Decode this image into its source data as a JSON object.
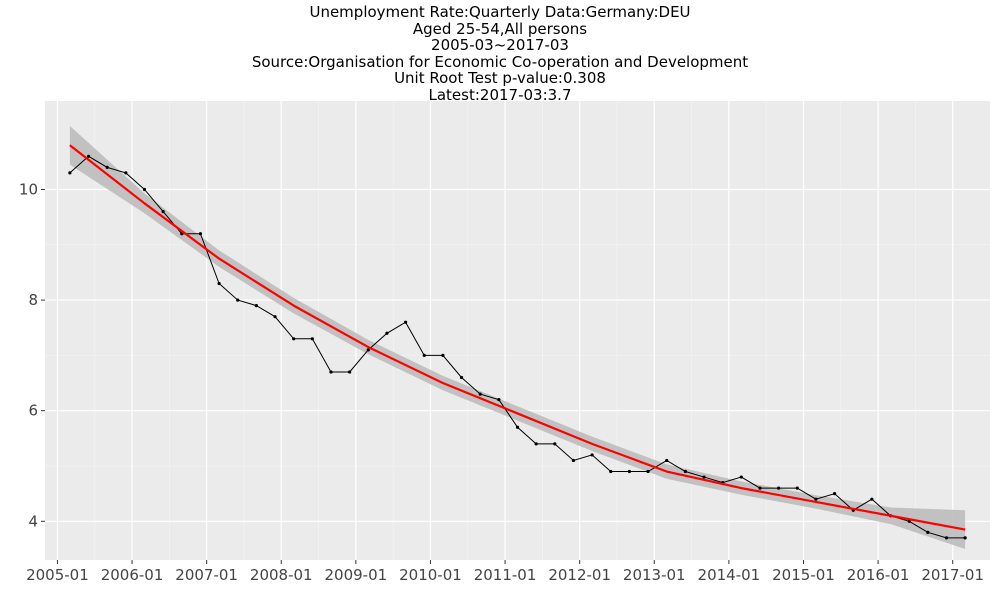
{
  "chart_data": {
    "type": "line",
    "title_lines": [
      "Unemployment Rate:Quarterly Data:Germany:DEU",
      "Aged 25-54,All persons",
      "2005-03~2017-03",
      "Source:Organisation for Economic Co-operation and Development",
      "Unit Root Test p-value:0.308",
      "Latest:2017-03:3.7"
    ],
    "xlabel": "",
    "ylabel": "",
    "x_ticks": [
      "2005-01",
      "2006-01",
      "2007-01",
      "2008-01",
      "2009-01",
      "2010-01",
      "2011-01",
      "2012-01",
      "2013-01",
      "2014-01",
      "2015-01",
      "2016-01",
      "2017-01"
    ],
    "y_ticks": [
      4,
      6,
      8,
      10
    ],
    "xlim": [
      "2004-11",
      "2017-07"
    ],
    "ylim": [
      3.3,
      11.6
    ],
    "grid": true,
    "series": [
      {
        "color": "#000000",
        "x": [
          "2005-03",
          "2005-06",
          "2005-09",
          "2005-12",
          "2006-03",
          "2006-06",
          "2006-09",
          "2006-12",
          "2007-03",
          "2007-06",
          "2007-09",
          "2007-12",
          "2008-03",
          "2008-06",
          "2008-09",
          "2008-12",
          "2009-03",
          "2009-06",
          "2009-09",
          "2009-12",
          "2010-03",
          "2010-06",
          "2010-09",
          "2010-12",
          "2011-03",
          "2011-06",
          "2011-09",
          "2011-12",
          "2012-03",
          "2012-06",
          "2012-09",
          "2012-12",
          "2013-03",
          "2013-06",
          "2013-09",
          "2013-12",
          "2014-03",
          "2014-06",
          "2014-09",
          "2014-12",
          "2015-03",
          "2015-06",
          "2015-09",
          "2015-12",
          "2016-03",
          "2016-06",
          "2016-09",
          "2016-12",
          "2017-03"
        ],
        "values": [
          10.3,
          10.6,
          10.4,
          10.3,
          10.0,
          9.6,
          9.2,
          9.2,
          8.3,
          8.0,
          7.9,
          7.7,
          7.3,
          7.3,
          6.7,
          6.7,
          7.1,
          7.4,
          7.6,
          7.0,
          7.0,
          6.6,
          6.3,
          6.2,
          5.7,
          5.4,
          5.4,
          5.1,
          5.2,
          4.9,
          4.9,
          4.9,
          5.1,
          4.9,
          4.8,
          4.7,
          4.8,
          4.6,
          4.6,
          4.6,
          4.4,
          4.5,
          4.2,
          4.4,
          4.1,
          4.0,
          3.8,
          3.7,
          3.7
        ]
      }
    ],
    "trend": {
      "color": "#ff0000",
      "band_color": "#bdbdbd",
      "x": [
        "2005-03",
        "2006-03",
        "2007-03",
        "2008-03",
        "2009-03",
        "2010-03",
        "2011-03",
        "2012-03",
        "2013-03",
        "2014-03",
        "2015-03",
        "2016-03",
        "2017-03"
      ],
      "values": [
        10.8,
        9.75,
        8.75,
        7.9,
        7.15,
        6.5,
        5.95,
        5.4,
        4.9,
        4.6,
        4.35,
        4.1,
        3.85
      ],
      "band_halfwidth": [
        0.35,
        0.18,
        0.15,
        0.14,
        0.13,
        0.13,
        0.13,
        0.13,
        0.13,
        0.12,
        0.12,
        0.15,
        0.35
      ]
    }
  }
}
